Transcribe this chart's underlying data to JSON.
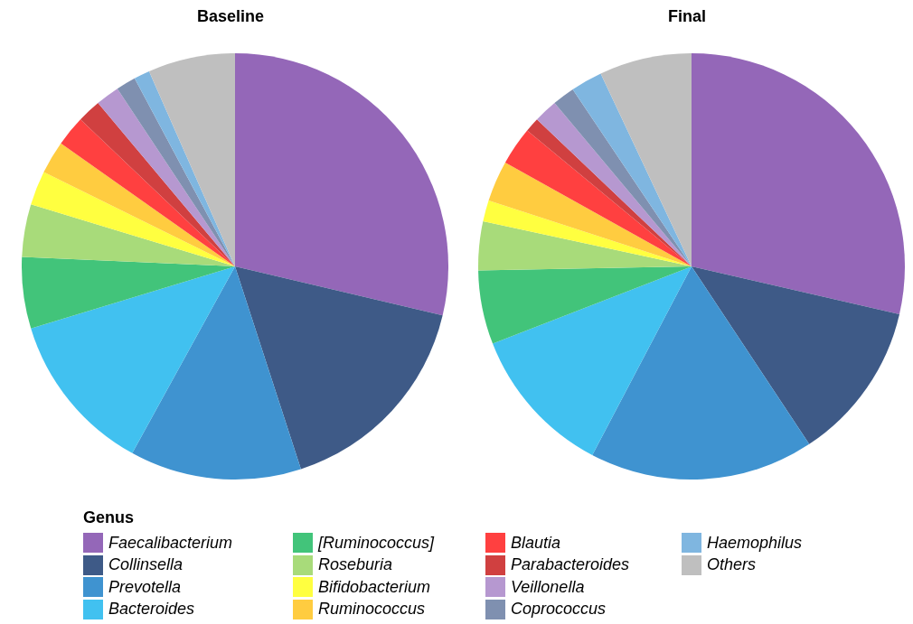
{
  "chart_data": {
    "type": "pie",
    "legend": "bottom",
    "legend_title": "Genus",
    "categories": [
      "Faecalibacterium",
      "Collinsella",
      "Prevotella",
      "Bacteroides",
      "[Ruminococcus]",
      "Roseburia",
      "Bifidobacterium",
      "Ruminococcus",
      "Blautia",
      "Parabacteroides",
      "Veillonella",
      "Coprococcus",
      "Haemophilus",
      "Others"
    ],
    "colors": [
      "#9467b8",
      "#3e5a87",
      "#3f93d0",
      "#41c1f0",
      "#42c47a",
      "#a8db7a",
      "#ffff40",
      "#ffcc40",
      "#ff4040",
      "#d04040",
      "#b698d0",
      "#7f90b0",
      "#7fb6e0",
      "#bfbfbf"
    ],
    "series": [
      {
        "name": "Baseline",
        "values": [
          28.7,
          16.3,
          13.0,
          12.3,
          5.4,
          4.0,
          2.6,
          2.5,
          2.3,
          1.8,
          1.8,
          1.5,
          1.2,
          6.6
        ]
      },
      {
        "name": "Final",
        "values": [
          28.6,
          12.1,
          17.0,
          11.4,
          5.6,
          3.7,
          1.6,
          3.1,
          2.9,
          1.1,
          1.8,
          1.7,
          2.4,
          7.0
        ]
      }
    ]
  }
}
